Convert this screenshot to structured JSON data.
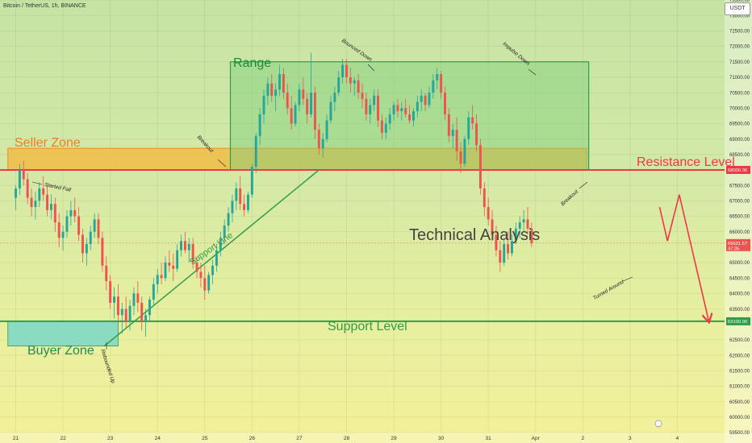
{
  "header": {
    "title": "Bitcoin / TetherUS, 1h, BINANCE",
    "currency": "USDT"
  },
  "annotations": {
    "seller_zone": "Seller Zone",
    "buyer_zone": "Buyer Zone",
    "range": "Range",
    "resistance_level": "Resistance Level",
    "support_level": "Support Level",
    "support_line": "Support Line",
    "technical_analysis": "Technical Analysis",
    "started_fall": "Started Fall",
    "rebounded_up": "Rebounded Up",
    "breakout_1": "Breakout",
    "breakout_2": "Breakout",
    "bounced_down": "Bounced Down",
    "impulse_down": "Impulse Down",
    "turned_around": "Turned Around"
  },
  "colors": {
    "up": "#26a69a",
    "down": "#ef5350",
    "resistance": "#f23645",
    "support": "#2e9e4a",
    "seller_zone_fill": "#f5b942",
    "seller_zone_border": "#f08c1a",
    "buyer_zone_fill": "#7fd8c4",
    "range_fill": "#7ccf7c",
    "range_border": "#2e9e4a"
  },
  "chart_data": {
    "type": "candlestick",
    "symbol": "Bitcoin / TetherUS",
    "interval": "1h",
    "exchange": "BINANCE",
    "ylim": [
      59500,
      73500
    ],
    "y_ticks": [
      "73500.00",
      "73000.00",
      "72500.00",
      "72000.00",
      "71500.00",
      "71000.00",
      "70500.00",
      "70000.00",
      "69500.00",
      "69000.00",
      "68500.00",
      "67500.00",
      "67000.00",
      "66500.00",
      "66000.00",
      "65000.00",
      "64500.00",
      "64000.00",
      "63500.00",
      "62500.00",
      "62000.00",
      "61500.00",
      "61000.00",
      "60500.00",
      "60000.00",
      "59500.00"
    ],
    "x_ticks": [
      "21",
      "22",
      "23",
      "24",
      "25",
      "26",
      "27",
      "28",
      "29",
      "30",
      "31",
      "Apr",
      "2",
      "3",
      "4"
    ],
    "x_tick_times": [
      0,
      24,
      48,
      72,
      96,
      120,
      144,
      168,
      192,
      216,
      240,
      264,
      288,
      312,
      336
    ],
    "time_range": [
      -8,
      360
    ],
    "resistance_level": 68000,
    "support_level": 63100,
    "current_price": "65631.57",
    "current_countdown": "47:35",
    "seller_zone": {
      "low": 68000,
      "high": 68700,
      "t_start": -4,
      "t_end": 290
    },
    "buyer_zone": {
      "low": 62300,
      "high": 63100,
      "t_start": -4,
      "t_end": 52
    },
    "range_box": {
      "low": 68000,
      "high": 71500,
      "t_start": 109,
      "t_end": 291
    },
    "support_line": [
      [
        45,
        62300
      ],
      [
        154,
        68000
      ]
    ],
    "projection": [
      [
        327,
        66800
      ],
      [
        331,
        65700
      ],
      [
        337,
        67200
      ],
      [
        352,
        63100
      ]
    ],
    "candles": [
      [
        67100,
        67500,
        66700,
        67400
      ],
      [
        67400,
        68200,
        67200,
        68000
      ],
      [
        68000,
        68300,
        67500,
        67700
      ],
      [
        67700,
        67900,
        66900,
        67100
      ],
      [
        67100,
        67400,
        66500,
        66800
      ],
      [
        66800,
        67300,
        66400,
        67000
      ],
      [
        67000,
        67600,
        66800,
        67400
      ],
      [
        67400,
        67800,
        67000,
        67200
      ],
      [
        67200,
        67500,
        66500,
        66700
      ],
      [
        66700,
        67200,
        66400,
        66900
      ],
      [
        66900,
        67100,
        66000,
        66300
      ],
      [
        66300,
        66600,
        65500,
        65800
      ],
      [
        65800,
        66200,
        65400,
        66000
      ],
      [
        66000,
        66700,
        65800,
        66500
      ],
      [
        66500,
        67000,
        66200,
        66700
      ],
      [
        66700,
        67100,
        66300,
        66500
      ],
      [
        66500,
        66800,
        65700,
        65900
      ],
      [
        65900,
        66100,
        65000,
        65300
      ],
      [
        65300,
        65800,
        64900,
        65600
      ],
      [
        65600,
        66200,
        65400,
        66000
      ],
      [
        66000,
        66600,
        65800,
        66400
      ],
      [
        66400,
        66600,
        65600,
        65800
      ],
      [
        65800,
        66000,
        64700,
        64900
      ],
      [
        64900,
        65200,
        64100,
        64400
      ],
      [
        64400,
        64600,
        63500,
        63700
      ],
      [
        63700,
        64200,
        63200,
        63900
      ],
      [
        63900,
        64300,
        63100,
        63300
      ],
      [
        63300,
        63700,
        62700,
        63500
      ],
      [
        63500,
        63900,
        62900,
        63100
      ],
      [
        63100,
        63800,
        62800,
        63600
      ],
      [
        63600,
        64200,
        63300,
        64000
      ],
      [
        64000,
        64400,
        63400,
        63700
      ],
      [
        63700,
        63900,
        62800,
        63100
      ],
      [
        63100,
        63500,
        62600,
        63300
      ],
      [
        63300,
        63900,
        63100,
        63800
      ],
      [
        63800,
        64500,
        63600,
        64300
      ],
      [
        64300,
        64800,
        64000,
        64600
      ],
      [
        64600,
        65000,
        64300,
        64500
      ],
      [
        64500,
        65200,
        64400,
        65000
      ],
      [
        65000,
        65400,
        64700,
        64900
      ],
      [
        64900,
        65300,
        64400,
        64800
      ],
      [
        64800,
        65600,
        64700,
        65400
      ],
      [
        65400,
        65900,
        65200,
        65700
      ],
      [
        65700,
        66000,
        65300,
        65400
      ],
      [
        65400,
        65800,
        65000,
        65600
      ],
      [
        65600,
        65800,
        64800,
        65000
      ],
      [
        65000,
        65200,
        64500,
        64700
      ],
      [
        64700,
        65000,
        64200,
        64500
      ],
      [
        64500,
        64900,
        63800,
        64100
      ],
      [
        64100,
        64700,
        64000,
        64600
      ],
      [
        64600,
        65100,
        64300,
        64900
      ],
      [
        64900,
        65600,
        64700,
        65400
      ],
      [
        65400,
        66000,
        65200,
        65800
      ],
      [
        65800,
        66400,
        65600,
        66200
      ],
      [
        66200,
        66800,
        66000,
        66600
      ],
      [
        66600,
        67200,
        66300,
        67000
      ],
      [
        67000,
        67600,
        66700,
        67400
      ],
      [
        67400,
        67800,
        66700,
        66900
      ],
      [
        66900,
        67200,
        66500,
        66700
      ],
      [
        66700,
        67300,
        66600,
        67200
      ],
      [
        67200,
        68200,
        67100,
        68100
      ],
      [
        68100,
        69200,
        67900,
        69100
      ],
      [
        69100,
        70000,
        68800,
        69800
      ],
      [
        69800,
        70600,
        69500,
        70400
      ],
      [
        70400,
        71000,
        70100,
        70800
      ],
      [
        70800,
        71100,
        70200,
        70400
      ],
      [
        70400,
        70800,
        69900,
        70600
      ],
      [
        70600,
        71400,
        70400,
        71100
      ],
      [
        71100,
        71300,
        70300,
        70500
      ],
      [
        70500,
        70800,
        69800,
        70000
      ],
      [
        70000,
        70400,
        69300,
        69500
      ],
      [
        69500,
        70200,
        69400,
        70100
      ],
      [
        70100,
        70800,
        69900,
        70600
      ],
      [
        70600,
        71000,
        70100,
        70300
      ],
      [
        70300,
        70500,
        69500,
        69800
      ],
      [
        69800,
        71800,
        69700,
        70500
      ],
      [
        70500,
        70700,
        69000,
        69300
      ],
      [
        69300,
        69500,
        68500,
        68700
      ],
      [
        68700,
        69200,
        68400,
        69000
      ],
      [
        69000,
        69800,
        68900,
        69600
      ],
      [
        69600,
        70400,
        69500,
        70200
      ],
      [
        70200,
        70700,
        69900,
        70500
      ],
      [
        70500,
        71200,
        70400,
        71000
      ],
      [
        71000,
        71600,
        70800,
        71400
      ],
      [
        71400,
        71600,
        70800,
        71000
      ],
      [
        71000,
        71300,
        70500,
        70800
      ],
      [
        70800,
        71000,
        70400,
        70900
      ],
      [
        70900,
        71100,
        70300,
        70500
      ],
      [
        70500,
        70800,
        70000,
        70300
      ],
      [
        70300,
        70500,
        69600,
        69800
      ],
      [
        69800,
        70300,
        69500,
        70100
      ],
      [
        70100,
        70600,
        69900,
        70400
      ],
      [
        70400,
        70600,
        69400,
        69600
      ],
      [
        69600,
        69800,
        69000,
        69200
      ],
      [
        69200,
        69700,
        69000,
        69500
      ],
      [
        69500,
        70000,
        69300,
        69800
      ],
      [
        69800,
        70200,
        69600,
        70100
      ],
      [
        70100,
        70300,
        69700,
        69900
      ],
      [
        69900,
        70200,
        69600,
        70000
      ],
      [
        70000,
        70300,
        69700,
        69800
      ],
      [
        69800,
        70100,
        69500,
        69600
      ],
      [
        69600,
        70000,
        69400,
        69900
      ],
      [
        69900,
        70400,
        69700,
        70200
      ],
      [
        70200,
        70600,
        69900,
        70400
      ],
      [
        70400,
        70500,
        69900,
        70100
      ],
      [
        70100,
        70700,
        70000,
        70500
      ],
      [
        70500,
        71100,
        70300,
        70900
      ],
      [
        70900,
        71300,
        70600,
        71100
      ],
      [
        71100,
        71200,
        70300,
        70500
      ],
      [
        70500,
        70700,
        69600,
        69800
      ],
      [
        69800,
        70000,
        68900,
        69100
      ],
      [
        69100,
        69500,
        68700,
        69300
      ],
      [
        69300,
        69700,
        68300,
        68600
      ],
      [
        68600,
        68900,
        67900,
        68200
      ],
      [
        68200,
        69100,
        68100,
        69000
      ],
      [
        69000,
        69900,
        68800,
        69700
      ],
      [
        69700,
        70100,
        69300,
        69500
      ],
      [
        69500,
        69800,
        68600,
        68800
      ],
      [
        68800,
        69000,
        67200,
        67400
      ],
      [
        67400,
        67600,
        66500,
        66800
      ],
      [
        66800,
        67100,
        66200,
        66400
      ],
      [
        66400,
        66700,
        65700,
        65900
      ],
      [
        65900,
        66200,
        65200,
        65400
      ],
      [
        65400,
        65700,
        64700,
        65000
      ],
      [
        65000,
        65800,
        64900,
        65600
      ],
      [
        65600,
        66000,
        65100,
        65300
      ],
      [
        65300,
        65900,
        65200,
        65700
      ],
      [
        65700,
        66300,
        65600,
        66100
      ],
      [
        66100,
        66500,
        65800,
        66300
      ],
      [
        66300,
        66700,
        66000,
        66400
      ],
      [
        66400,
        66800,
        65900,
        66100
      ],
      [
        66100,
        66300,
        65500,
        65632
      ]
    ]
  }
}
